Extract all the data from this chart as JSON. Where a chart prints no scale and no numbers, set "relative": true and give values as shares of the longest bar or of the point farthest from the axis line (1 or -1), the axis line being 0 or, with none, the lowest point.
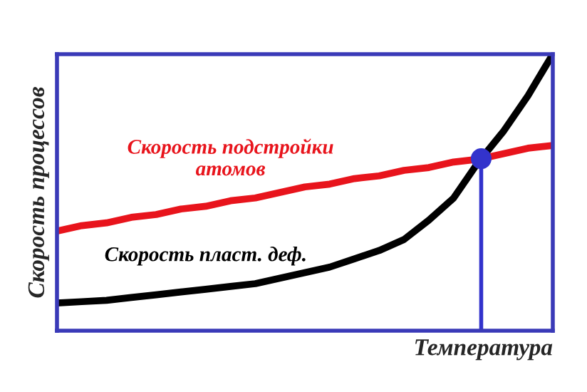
{
  "chart_data": {
    "type": "line",
    "relative": true,
    "xlabel": "Температура",
    "ylabel": "Скорость процессов",
    "categories": [
      null,
      null,
      null,
      null,
      null,
      null,
      null,
      null,
      null,
      null,
      null,
      null,
      null,
      null,
      null,
      null,
      null,
      null,
      null,
      null,
      null
    ],
    "series": [
      {
        "name": "Скорость подстройки\nатомов",
        "color": "#e8141c",
        "values": [
          0.36,
          0.38,
          0.39,
          0.41,
          0.42,
          0.44,
          0.45,
          0.47,
          0.48,
          0.5,
          0.52,
          0.53,
          0.55,
          0.56,
          0.58,
          0.59,
          0.61,
          0.62,
          0.64,
          0.66,
          0.67
        ]
      },
      {
        "name": "Скорость пласт. деф.",
        "color": "#000000",
        "values": [
          0.1,
          0.105,
          0.11,
          0.12,
          0.13,
          0.14,
          0.15,
          0.16,
          0.17,
          0.19,
          0.21,
          0.23,
          0.26,
          0.29,
          0.33,
          0.4,
          0.48,
          0.61,
          0.72,
          0.85,
          1.0
        ]
      }
    ]
  }
}
